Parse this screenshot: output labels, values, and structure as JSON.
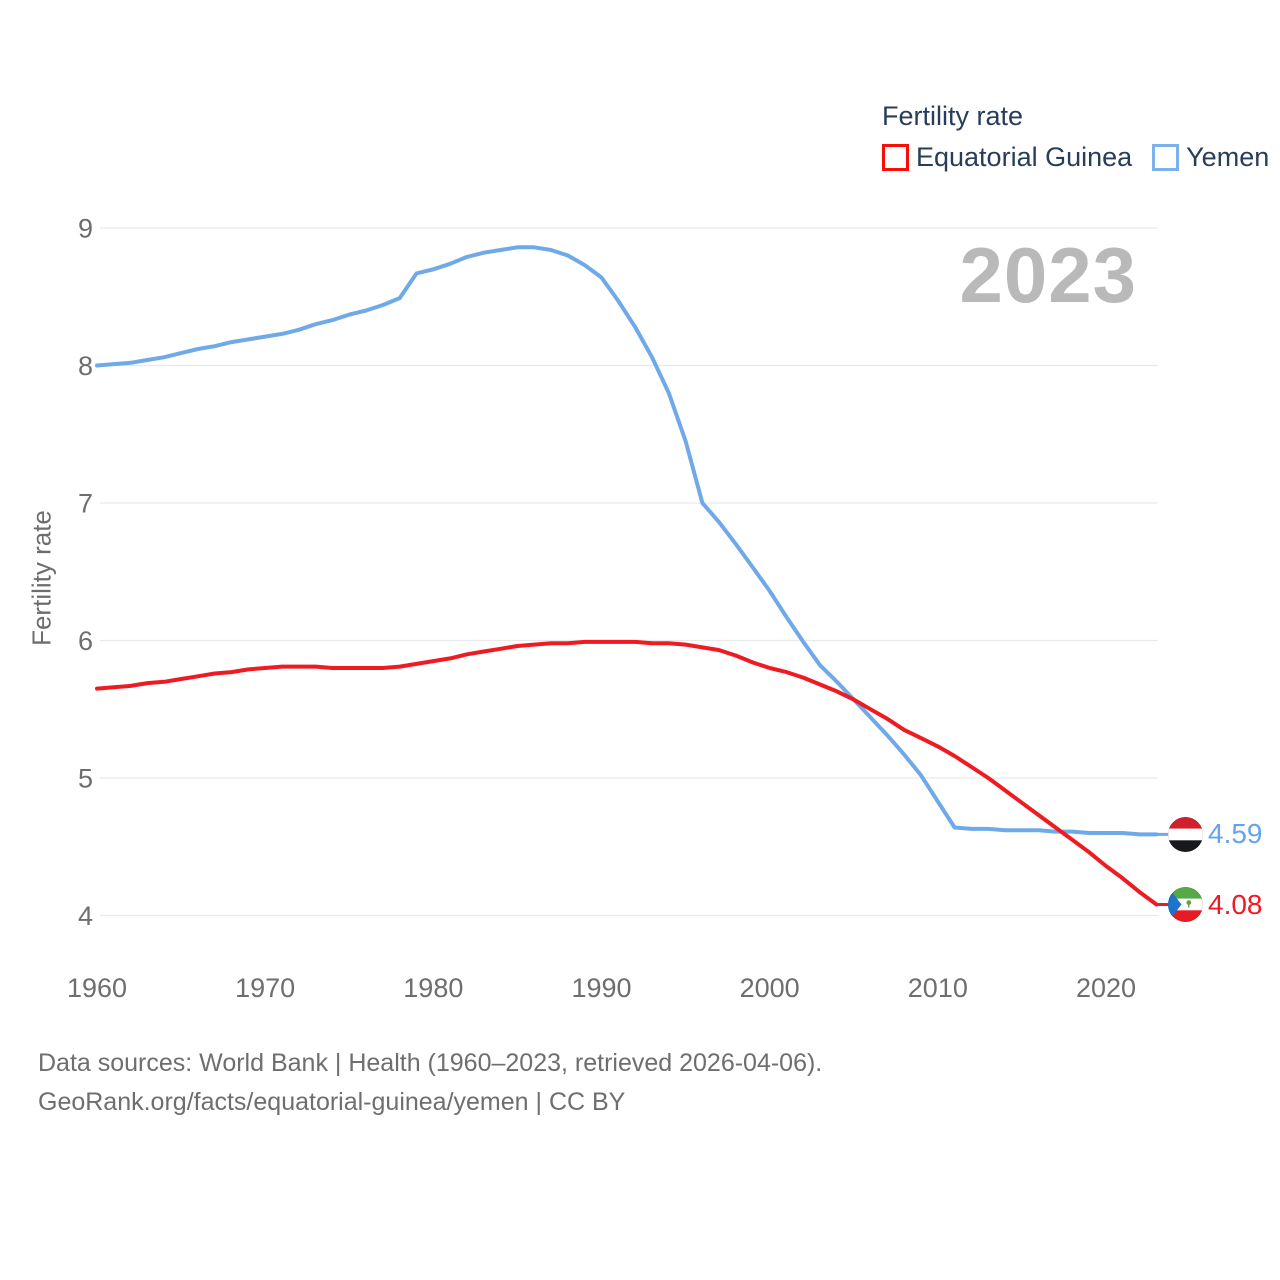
{
  "legend": {
    "title": "Fertility rate",
    "items": [
      {
        "label": "Equatorial Guinea",
        "swatch_color": "#fb0d07"
      },
      {
        "label": "Yemen",
        "swatch_color": "#7cb2ea"
      }
    ]
  },
  "end_labels": [
    {
      "series": "Yemen",
      "value": "4.59",
      "color": "#64a4e8",
      "flag_icon": "yemen-flag"
    },
    {
      "series": "Equatorial Guinea",
      "value": "4.08",
      "color": "#ee1b22",
      "flag_icon": "equatorial-guinea-flag"
    }
  ],
  "footer": {
    "line1": "Data sources: World Bank | Health (1960–2023, retrieved 2026-04-06).",
    "line2": "GeoRank.org/facts/equatorial-guinea/yemen | CC BY"
  },
  "chart_data": {
    "type": "line",
    "title": "Fertility rate",
    "ylabel": "Fertility rate",
    "watermark_year": "2023",
    "grid": true,
    "legend_position": "top-right",
    "xlim": [
      1960,
      2023
    ],
    "ylim": [
      4,
      9
    ],
    "xticks": [
      1960,
      1970,
      1980,
      1990,
      2000,
      2010,
      2020
    ],
    "yticks": [
      4,
      5,
      6,
      7,
      8,
      9
    ],
    "x": [
      1960,
      1961,
      1962,
      1963,
      1964,
      1965,
      1966,
      1967,
      1968,
      1969,
      1970,
      1971,
      1972,
      1973,
      1974,
      1975,
      1976,
      1977,
      1978,
      1979,
      1980,
      1981,
      1982,
      1983,
      1984,
      1985,
      1986,
      1987,
      1988,
      1989,
      1990,
      1991,
      1992,
      1993,
      1994,
      1995,
      1996,
      1997,
      1998,
      1999,
      2000,
      2001,
      2002,
      2003,
      2004,
      2005,
      2006,
      2007,
      2008,
      2009,
      2010,
      2011,
      2012,
      2013,
      2014,
      2015,
      2016,
      2017,
      2018,
      2019,
      2020,
      2021,
      2022,
      2023
    ],
    "series": [
      {
        "name": "Equatorial Guinea",
        "color": "#ee1b22",
        "end_value": 4.08,
        "end_label": "4.08",
        "values": [
          5.65,
          5.66,
          5.67,
          5.69,
          5.7,
          5.72,
          5.74,
          5.76,
          5.77,
          5.79,
          5.8,
          5.81,
          5.81,
          5.81,
          5.8,
          5.8,
          5.8,
          5.8,
          5.81,
          5.83,
          5.85,
          5.87,
          5.9,
          5.92,
          5.94,
          5.96,
          5.97,
          5.98,
          5.98,
          5.99,
          5.99,
          5.99,
          5.99,
          5.98,
          5.98,
          5.97,
          5.95,
          5.93,
          5.89,
          5.84,
          5.8,
          5.77,
          5.73,
          5.68,
          5.63,
          5.57,
          5.5,
          5.43,
          5.35,
          5.29,
          5.23,
          5.16,
          5.08,
          5.0,
          4.91,
          4.82,
          4.73,
          4.64,
          4.55,
          4.46,
          4.36,
          4.27,
          4.17,
          4.08
        ]
      },
      {
        "name": "Yemen",
        "color": "#70a9e7",
        "end_value": 4.59,
        "end_label": "4.59",
        "values": [
          8.0,
          8.01,
          8.02,
          8.04,
          8.06,
          8.09,
          8.12,
          8.14,
          8.17,
          8.19,
          8.21,
          8.23,
          8.26,
          8.3,
          8.33,
          8.37,
          8.4,
          8.44,
          8.49,
          8.67,
          8.7,
          8.74,
          8.79,
          8.82,
          8.84,
          8.86,
          8.86,
          8.84,
          8.8,
          8.73,
          8.64,
          8.47,
          8.28,
          8.06,
          7.8,
          7.45,
          7.0,
          6.86,
          6.7,
          6.53,
          6.36,
          6.17,
          5.99,
          5.82,
          5.7,
          5.57,
          5.44,
          5.31,
          5.17,
          5.02,
          4.83,
          4.64,
          4.63,
          4.63,
          4.62,
          4.62,
          4.62,
          4.61,
          4.61,
          4.6,
          4.6,
          4.6,
          4.59,
          4.59
        ]
      }
    ]
  }
}
